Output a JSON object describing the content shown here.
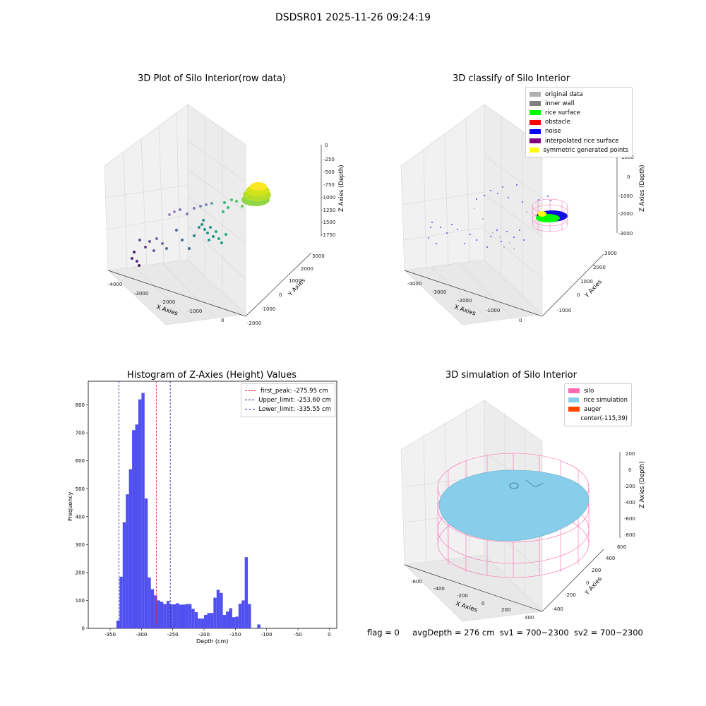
{
  "suptitle": "DSDSR01 2025-11-26 09:24:19",
  "colors": {
    "hist_bar": "#5050f0",
    "first_peak": "#e02020",
    "limit": "#202090",
    "silo": "#ff69b4",
    "rice_simulation": "#87ceeb",
    "auger": "#ff4500"
  },
  "panels": {
    "raw": {
      "title": "3D Plot of Silo Interior(row data)",
      "xlabel": "X Axies",
      "ylabel": "Y Axies",
      "zlabel": "Z Axies (Depth)",
      "xticks": [
        "-4000",
        "-3000",
        "-2000",
        "-1000",
        "0"
      ],
      "yticks": [
        "-2000",
        "-1000",
        "0",
        "1000",
        "2000",
        "3000"
      ],
      "zticks": [
        "0",
        "-250",
        "-500",
        "-750",
        "-1000",
        "-1250",
        "-1500",
        "-1750"
      ]
    },
    "classify": {
      "title": "3D classify of Silo Interior",
      "xlabel": "X Axies",
      "ylabel": "Y Axies",
      "zlabel": "Z Axies (Depth)",
      "xticks": [
        "-4000",
        "-3000",
        "-2000",
        "-1000",
        "0"
      ],
      "yticks": [
        "-1000",
        "0",
        "1000",
        "2000",
        "3000"
      ],
      "zticks": [
        "1000",
        "0",
        "-1000",
        "-2000",
        "-3000"
      ],
      "legend": [
        {
          "label": "original data",
          "color": "#b0b0b0"
        },
        {
          "label": "inner wall",
          "color": "#808080"
        },
        {
          "label": "rice surface",
          "color": "#00ff00"
        },
        {
          "label": "obstacle",
          "color": "#ff0000"
        },
        {
          "label": "noise",
          "color": "#0000ff"
        },
        {
          "label": "interpolated rice surface",
          "color": "#800080"
        },
        {
          "label": "symmetric generated points",
          "color": "#ffff00"
        }
      ]
    },
    "simulation": {
      "title": "3D simulation of Silo Interior",
      "xlabel": "X Axies",
      "ylabel": "Y Axies",
      "zlabel": "Z Axies (Depth)",
      "xticks": [
        "-600",
        "-400",
        "-200",
        "0",
        "200",
        "400"
      ],
      "yticks": [
        "-400",
        "-200",
        "0",
        "200",
        "400",
        "600"
      ],
      "zticks": [
        "200",
        "0",
        "-200",
        "-400",
        "-600",
        "-800"
      ],
      "legend": [
        {
          "label": "silo",
          "color": "#ff69b4"
        },
        {
          "label": "rice simulation",
          "color": "#87ceeb"
        },
        {
          "label": "auger",
          "color": "#ff4500"
        },
        {
          "label": "center(-115,39)",
          "color": ""
        }
      ]
    }
  },
  "footer": {
    "flag": "flag = 0",
    "avg_depth": "avgDepth = 276 cm",
    "sv1": "sv1 = 700~2300",
    "sv2": "sv2 = 700~2300"
  },
  "chart_data": {
    "type": "bar",
    "title": "Histogram of Z-Axies (Height) Values",
    "xlabel": "Depth (cm)",
    "ylabel": "Frequency",
    "xlim": [
      -385,
      12
    ],
    "ylim": [
      0,
      885
    ],
    "xticks": [
      -350,
      -300,
      -250,
      -200,
      -150,
      -100,
      -50,
      0
    ],
    "yticks": [
      0,
      100,
      200,
      300,
      400,
      500,
      600,
      700,
      800
    ],
    "bin_width": 5,
    "bins": [
      [
        -340,
        28
      ],
      [
        -335,
        185
      ],
      [
        -330,
        380
      ],
      [
        -325,
        480
      ],
      [
        -320,
        570
      ],
      [
        -315,
        710
      ],
      [
        -310,
        730
      ],
      [
        -305,
        820
      ],
      [
        -300,
        843
      ],
      [
        -295,
        465
      ],
      [
        -290,
        182
      ],
      [
        -285,
        140
      ],
      [
        -280,
        118
      ],
      [
        -275,
        100
      ],
      [
        -270,
        95
      ],
      [
        -265,
        87
      ],
      [
        -260,
        98
      ],
      [
        -255,
        86
      ],
      [
        -250,
        86
      ],
      [
        -245,
        90
      ],
      [
        -240,
        85
      ],
      [
        -235,
        85
      ],
      [
        -230,
        87
      ],
      [
        -225,
        87
      ],
      [
        -220,
        70
      ],
      [
        -215,
        58
      ],
      [
        -210,
        35
      ],
      [
        -205,
        35
      ],
      [
        -200,
        48
      ],
      [
        -195,
        55
      ],
      [
        -190,
        55
      ],
      [
        -185,
        110
      ],
      [
        -180,
        138
      ],
      [
        -175,
        127
      ],
      [
        -170,
        48
      ],
      [
        -165,
        60
      ],
      [
        -160,
        72
      ],
      [
        -155,
        40
      ],
      [
        -150,
        42
      ],
      [
        -145,
        88
      ],
      [
        -140,
        100
      ],
      [
        -135,
        255
      ],
      [
        -130,
        87
      ],
      [
        -125,
        0
      ],
      [
        -120,
        0
      ],
      [
        -115,
        14
      ]
    ],
    "vlines": [
      {
        "name": "first_peak: -275.95 cm",
        "x": -276,
        "color": "#e02020"
      },
      {
        "name": "Upper_limit: -253.60 cm",
        "x": -254,
        "color": "#202090"
      },
      {
        "name": "Lower_limit: -335.55 cm",
        "x": -336,
        "color": "#202090"
      }
    ]
  }
}
